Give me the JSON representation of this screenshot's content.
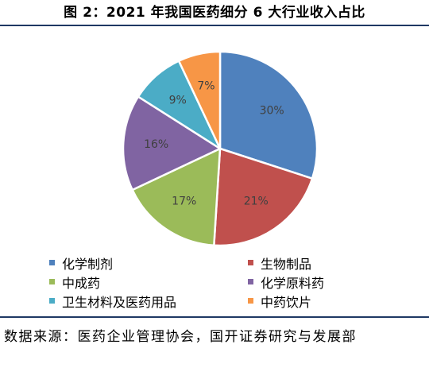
{
  "chart_data": {
    "type": "pie",
    "title": "图 2：2021 年我国医药细分 6 大行业收入占比",
    "slices": [
      {
        "name": "化学制剂",
        "value": 30,
        "label": "30%",
        "color": "#4f81bd"
      },
      {
        "name": "生物制品",
        "value": 21,
        "label": "21%",
        "color": "#c0504d"
      },
      {
        "name": "中成药",
        "value": 17,
        "label": "17%",
        "color": "#9bbb59"
      },
      {
        "name": "化学原料药",
        "value": 16,
        "label": "16%",
        "color": "#8064a2"
      },
      {
        "name": "卫生材料及医药用品",
        "value": 9,
        "label": "9%",
        "color": "#4bacc6"
      },
      {
        "name": "中药饮片",
        "value": 7,
        "label": "7%",
        "color": "#f79646"
      }
    ],
    "legend_order": [
      "化学制剂",
      "生物制品",
      "中成药",
      "化学原料药",
      "卫生材料及医药用品",
      "中药饮片"
    ],
    "legend_position": "bottom"
  },
  "source": "数据来源：医药企业管理协会，国开证券研究与发展部"
}
